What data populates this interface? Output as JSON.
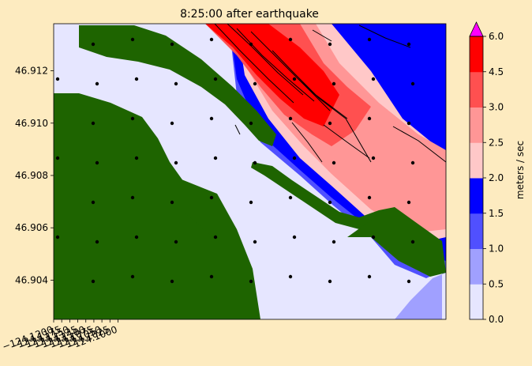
{
  "chart_data": {
    "type": "heatmap",
    "title": "8:25:00 after earthquake",
    "xlabel": "",
    "ylabel": "",
    "xlim": [
      -124.12,
      -123.998
    ],
    "ylim": [
      46.9025,
      46.9138
    ],
    "x_ticks": [
      -124.12,
      -124.1175,
      -124.115,
      -124.1125,
      -124.11,
      -124.1075,
      -124.105,
      -124.1025,
      -124.1
    ],
    "x_tick_labels": [
      "−124.1200",
      "−124.1175",
      "−124.1150",
      "−124.1125",
      "−124.1100",
      "−124.1075",
      "−124.1050",
      "−124.1025",
      "−124.1000"
    ],
    "y_ticks": [
      46.904,
      46.906,
      46.908,
      46.91,
      46.912
    ],
    "y_tick_labels": [
      "46.904",
      "46.906",
      "46.908",
      "46.910",
      "46.912"
    ],
    "colorbar": {
      "label": "meters / sec",
      "levels": [
        0.0,
        0.5,
        1.0,
        1.5,
        2.0,
        2.5,
        3.0,
        4.5,
        6.0
      ],
      "tick_labels": [
        "0.0",
        "0.5",
        "1.0",
        "1.5",
        "2.0",
        "2.5",
        "3.0",
        "4.5",
        "6.0"
      ],
      "colors": [
        "#e6e6ff",
        "#a0a0ff",
        "#5050ff",
        "#0000ff",
        "#ffc8c8",
        "#ff9696",
        "#ff5050",
        "#ff0000"
      ],
      "extend_max_color": "#ff00ff"
    },
    "land_color": "#1e6400",
    "streamline_color": "#000000",
    "grid": false
  }
}
